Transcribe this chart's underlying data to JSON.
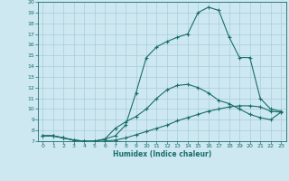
{
  "xlabel": "Humidex (Indice chaleur)",
  "bg_color": "#cde8f0",
  "grid_color": "#aaccdd",
  "line_color": "#1a6e6a",
  "xlim": [
    -0.5,
    23.5
  ],
  "ylim": [
    7,
    20
  ],
  "xticks": [
    0,
    1,
    2,
    3,
    4,
    5,
    6,
    7,
    8,
    9,
    10,
    11,
    12,
    13,
    14,
    15,
    16,
    17,
    18,
    19,
    20,
    21,
    22,
    23
  ],
  "yticks": [
    7,
    8,
    9,
    10,
    11,
    12,
    13,
    14,
    15,
    16,
    17,
    18,
    19,
    20
  ],
  "line1_x": [
    0,
    1,
    2,
    3,
    4,
    5,
    6,
    7,
    8,
    9,
    10,
    11,
    12,
    13,
    14,
    15,
    16,
    17,
    18,
    19,
    20,
    21,
    22,
    23
  ],
  "line1_y": [
    7.5,
    7.5,
    7.3,
    7.1,
    7.0,
    7.0,
    7.0,
    7.1,
    7.3,
    7.6,
    7.9,
    8.2,
    8.5,
    8.9,
    9.2,
    9.5,
    9.8,
    10.0,
    10.2,
    10.3,
    10.3,
    10.2,
    9.8,
    9.7
  ],
  "line2_x": [
    0,
    1,
    2,
    3,
    4,
    5,
    6,
    7,
    8,
    9,
    10,
    11,
    12,
    13,
    14,
    15,
    16,
    17,
    18,
    19,
    20,
    21,
    22,
    23
  ],
  "line2_y": [
    7.5,
    7.5,
    7.3,
    7.1,
    7.0,
    7.0,
    7.2,
    8.2,
    8.8,
    9.3,
    10.0,
    11.0,
    11.8,
    12.2,
    12.3,
    12.0,
    11.5,
    10.8,
    10.5,
    10.0,
    9.5,
    9.2,
    9.0,
    9.7
  ],
  "line3_x": [
    0,
    1,
    2,
    3,
    4,
    5,
    6,
    7,
    8,
    9,
    10,
    11,
    12,
    13,
    14,
    15,
    16,
    17,
    18,
    19,
    20,
    21,
    22,
    23
  ],
  "line3_y": [
    7.5,
    7.5,
    7.3,
    7.1,
    7.0,
    7.0,
    7.2,
    7.5,
    8.5,
    11.5,
    14.8,
    15.8,
    16.3,
    16.7,
    17.0,
    19.0,
    19.5,
    19.2,
    16.7,
    14.8,
    14.8,
    11.0,
    10.0,
    9.8
  ]
}
